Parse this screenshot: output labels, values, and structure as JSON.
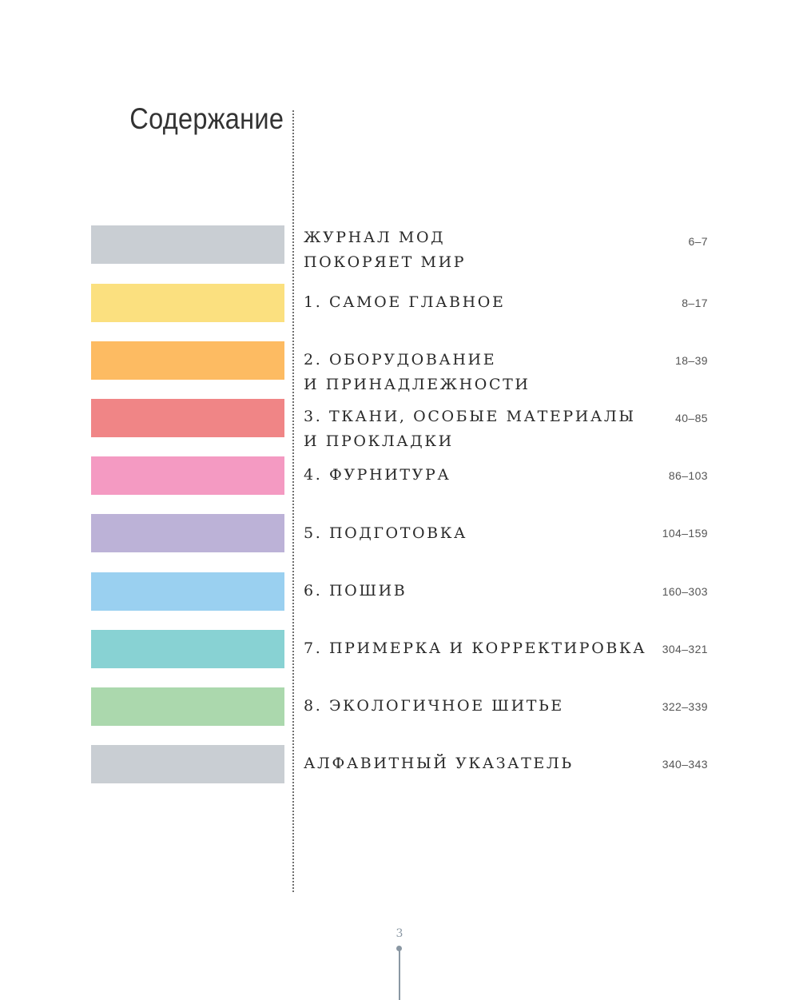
{
  "page_title": "Содержание",
  "page_number": "3",
  "toc": [
    {
      "title": "Журнал мод\nпокоряет мир",
      "pages": "6–7",
      "color": "#c9ced3"
    },
    {
      "title": "1. Самое главное",
      "pages": "8–17",
      "color": "#fbe07f"
    },
    {
      "title": "2. Оборудование\nи принадлежности",
      "pages": "18–39",
      "color": "#fdbb62"
    },
    {
      "title": "3. Ткани, особые материалы\nи прокладки",
      "pages": "40–85",
      "color": "#f08586"
    },
    {
      "title": "4. Фурнитура",
      "pages": "86–103",
      "color": "#f49ac2"
    },
    {
      "title": "5. Подготовка",
      "pages": "104–159",
      "color": "#bcb2d7"
    },
    {
      "title": "6. Пошив",
      "pages": "160–303",
      "color": "#9ad0f0"
    },
    {
      "title": "7. Примерка и корректировка",
      "pages": "304–321",
      "color": "#88d2d3"
    },
    {
      "title": "8. Экологичное шитье",
      "pages": "322–339",
      "color": "#abd8ad"
    },
    {
      "title": "Алфавитный указатель",
      "pages": "340–343",
      "color": "#c9ced3"
    }
  ]
}
